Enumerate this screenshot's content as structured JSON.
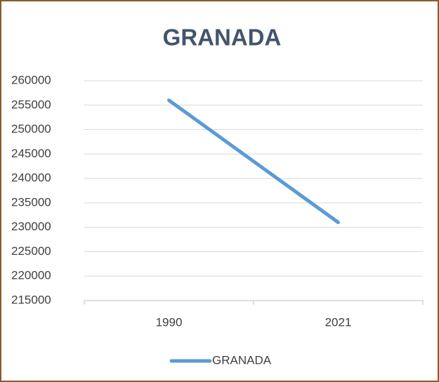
{
  "chart_data": {
    "type": "line",
    "title": "GRANADA",
    "categories": [
      "1990",
      "2021"
    ],
    "series": [
      {
        "name": "GRANADA",
        "color": "#5b9bd5",
        "values": [
          256000,
          231000
        ]
      }
    ],
    "ylim": [
      215000,
      260000
    ],
    "yticks": [
      215000,
      220000,
      225000,
      230000,
      235000,
      240000,
      245000,
      250000,
      255000,
      260000
    ],
    "grid": true,
    "legend": "bottom"
  }
}
